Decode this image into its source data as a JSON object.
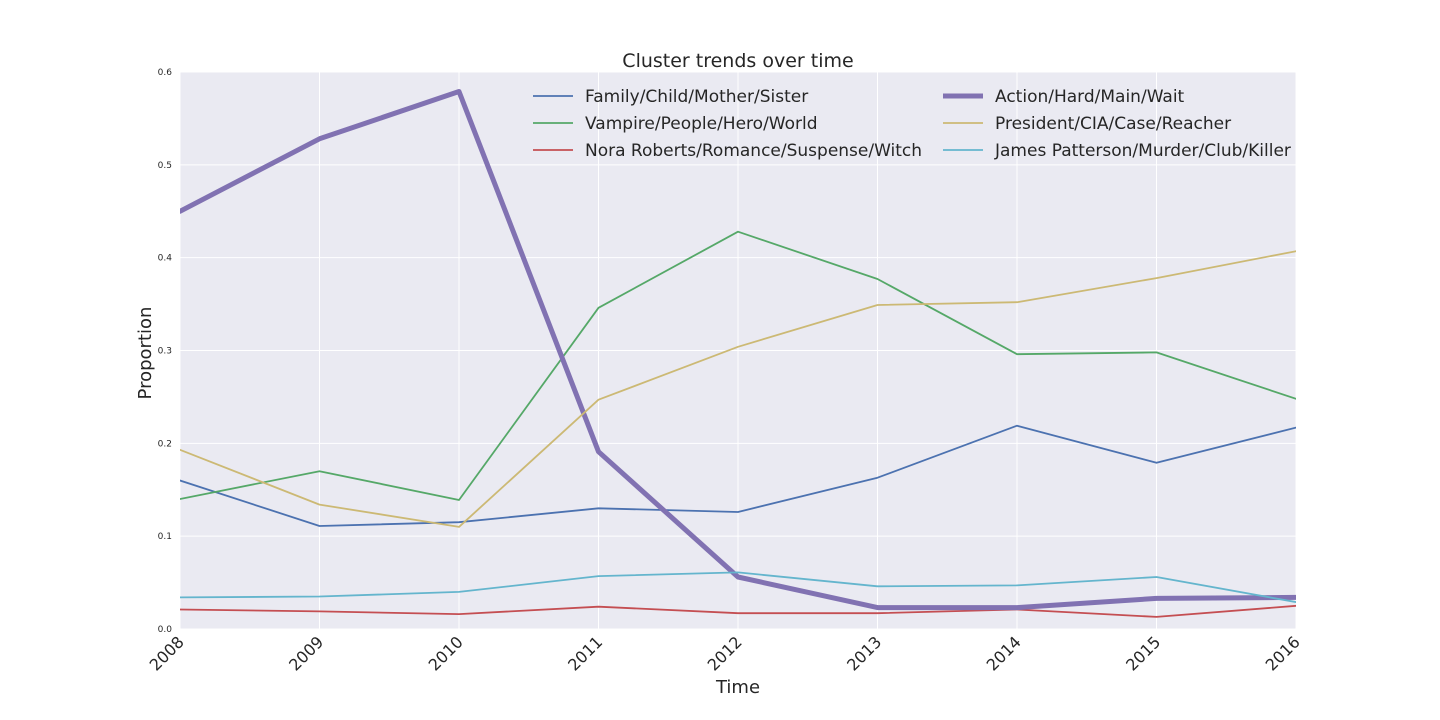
{
  "chart_data": {
    "type": "line",
    "title": "Cluster trends over time",
    "xlabel": "Time",
    "ylabel": "Proportion",
    "x": [
      "2008",
      "2009",
      "2010",
      "2011",
      "2012",
      "2013",
      "2014",
      "2015",
      "2016"
    ],
    "ylim": [
      0,
      0.6
    ],
    "yticks": [
      "0.0",
      "0.1",
      "0.2",
      "0.3",
      "0.4",
      "0.5",
      "0.6"
    ],
    "grid": true,
    "legend_position": "top-right",
    "series": [
      {
        "name": "Family/Child/Mother/Sister",
        "color": "#4c72b0",
        "bold": false,
        "values": [
          0.16,
          0.111,
          0.115,
          0.13,
          0.126,
          0.163,
          0.219,
          0.179,
          0.217
        ]
      },
      {
        "name": "Vampire/People/Hero/World",
        "color": "#55a868",
        "bold": false,
        "values": [
          0.14,
          0.17,
          0.139,
          0.346,
          0.428,
          0.377,
          0.296,
          0.298,
          0.248
        ]
      },
      {
        "name": "Nora Roberts/Romance/Suspense/Witch",
        "color": "#c44e52",
        "bold": false,
        "values": [
          0.021,
          0.019,
          0.016,
          0.024,
          0.017,
          0.017,
          0.021,
          0.013,
          0.025
        ]
      },
      {
        "name": "Action/Hard/Main/Wait",
        "color": "#8172b2",
        "bold": true,
        "values": [
          0.45,
          0.528,
          0.579,
          0.191,
          0.056,
          0.023,
          0.023,
          0.033,
          0.034
        ]
      },
      {
        "name": "President/CIA/Case/Reacher",
        "color": "#ccb974",
        "bold": false,
        "values": [
          0.193,
          0.134,
          0.11,
          0.247,
          0.304,
          0.349,
          0.352,
          0.378,
          0.407
        ]
      },
      {
        "name": "James Patterson/Murder/Club/Killer",
        "color": "#64b5cd",
        "bold": false,
        "values": [
          0.034,
          0.035,
          0.04,
          0.057,
          0.061,
          0.046,
          0.047,
          0.056,
          0.029
        ]
      }
    ]
  }
}
